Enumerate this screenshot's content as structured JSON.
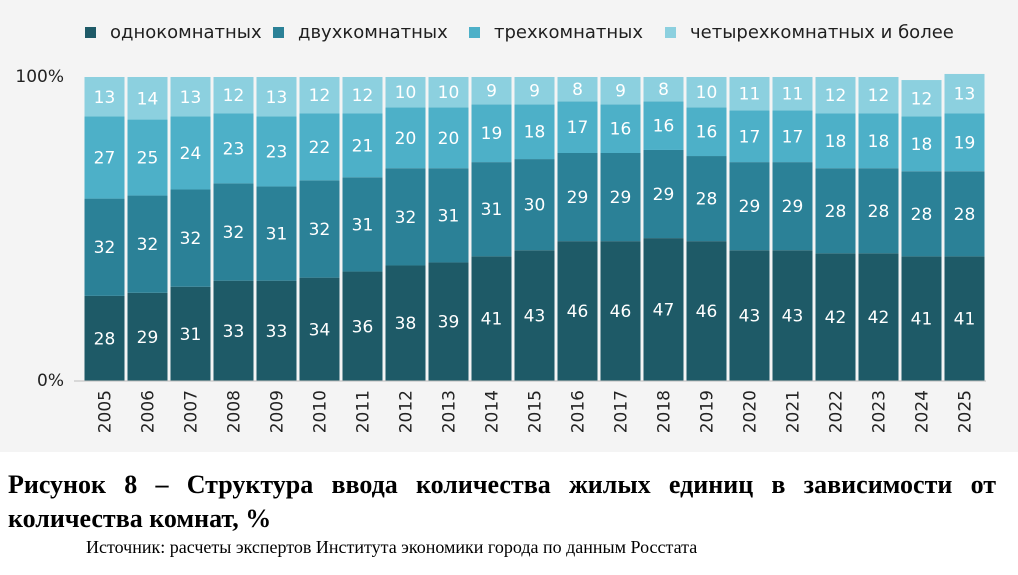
{
  "chart_data": {
    "type": "bar",
    "stacked": true,
    "percent": true,
    "categories": [
      "2005",
      "2006",
      "2007",
      "2008",
      "2009",
      "2010",
      "2011",
      "2012",
      "2013",
      "2014",
      "2015",
      "2016",
      "2017",
      "2018",
      "2019",
      "2020",
      "2021",
      "2022",
      "2023",
      "2024",
      "2025"
    ],
    "series": [
      {
        "name": "однокомнатных",
        "color": "#1e5a67",
        "values": [
          28,
          29,
          31,
          33,
          33,
          34,
          36,
          38,
          39,
          41,
          43,
          46,
          46,
          47,
          46,
          43,
          43,
          42,
          42,
          41,
          41
        ]
      },
      {
        "name": "двухкомнатных",
        "color": "#2b8197",
        "values": [
          32,
          32,
          32,
          32,
          31,
          32,
          31,
          32,
          31,
          31,
          30,
          29,
          29,
          29,
          28,
          29,
          29,
          28,
          28,
          28,
          28
        ]
      },
      {
        "name": "трехкомнатных",
        "color": "#4db0c8",
        "values": [
          27,
          25,
          24,
          23,
          23,
          22,
          21,
          20,
          20,
          19,
          18,
          17,
          16,
          16,
          16,
          17,
          17,
          18,
          18,
          18,
          19
        ]
      },
      {
        "name": "четырехкомнатных и более",
        "color": "#8cd0df",
        "values": [
          13,
          14,
          13,
          12,
          13,
          12,
          12,
          10,
          10,
          9,
          9,
          8,
          9,
          8,
          10,
          11,
          11,
          12,
          12,
          12,
          13
        ]
      }
    ],
    "y_ticks": [
      "100%",
      "0%"
    ],
    "ylim": [
      0,
      100
    ],
    "legend_position": "top",
    "grid": false
  },
  "caption": {
    "title": "Рисунок 8 – Структура ввода количества жилых единиц в зависимости от количества комнат, %",
    "source": "Источник: расчеты экспертов Института экономики города по данным Росстата"
  }
}
